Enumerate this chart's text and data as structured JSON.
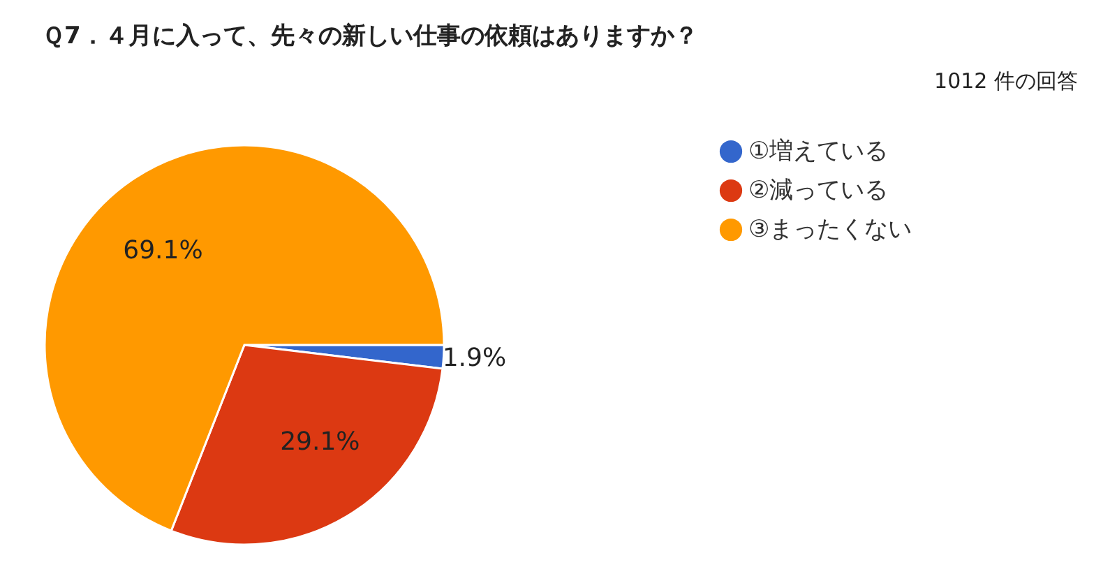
{
  "chart_data": {
    "type": "pie",
    "title": "Ｑ7．４月に入って、先々の新しい仕事の依頼はありますか？",
    "subtitle": "1012 件の回答",
    "categories": [
      "①増えている",
      "②減っている",
      "③まったくない"
    ],
    "values": [
      1.9,
      29.1,
      69.1
    ],
    "colors": [
      "#3366cc",
      "#dc3912",
      "#ff9900"
    ],
    "value_labels": [
      "1.9%",
      "29.1%",
      "69.1%"
    ],
    "legend": "right"
  }
}
